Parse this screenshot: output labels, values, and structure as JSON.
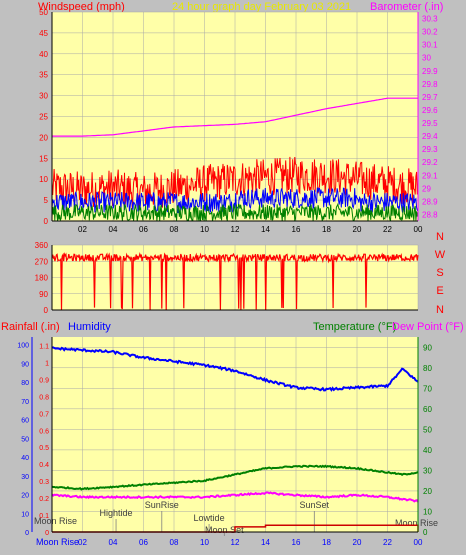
{
  "title": "24 hour graph day   February 03 2021",
  "colors": {
    "background": "#c0c0c0",
    "plot_bg": "#ffffa8",
    "grid": "#a8a8a8",
    "red": "#ff0000",
    "blue": "#0000ff",
    "green": "#008000",
    "magenta": "#ff00ff",
    "yellow": "#e8e800",
    "darkred": "#cc0000",
    "axis": "#000000",
    "gray_text": "#404040"
  },
  "x_ticks": [
    "02",
    "04",
    "06",
    "08",
    "10",
    "12",
    "14",
    "16",
    "18",
    "20",
    "22",
    "00"
  ],
  "chart_data": [
    {
      "type": "line",
      "name": "wind-barometer",
      "left_label": "Windspeed (mph)",
      "right_label": "Barometer (.in)",
      "left_ticks": [
        "50",
        "45",
        "40",
        "35",
        "30",
        "25",
        "20",
        "15",
        "10",
        "5",
        "0"
      ],
      "right_ticks": [
        "30.3",
        "30.2",
        "30.1",
        "30",
        "29.9",
        "29.8",
        "29.7",
        "29.6",
        "29.5",
        "29.4",
        "29.3",
        "29.2",
        "29.1",
        "29",
        "28.9",
        "28.8"
      ],
      "ylim_left": [
        0,
        50
      ],
      "ylim_right": [
        28.75,
        30.35
      ],
      "x": [
        0,
        2,
        4,
        6,
        8,
        10,
        12,
        14,
        16,
        18,
        20,
        22,
        24
      ],
      "series": [
        {
          "name": "Windspeed (mph)",
          "axis": "left",
          "color": "red",
          "style": "noisy",
          "values": [
            8,
            7.5,
            8,
            7,
            8,
            9,
            10,
            10.5,
            11,
            11,
            10,
            9,
            8
          ]
        },
        {
          "name": "Barometer (.in)",
          "axis": "right",
          "values": [
            29.4,
            29.4,
            29.41,
            29.44,
            29.47,
            29.48,
            29.49,
            29.51,
            29.56,
            29.61,
            29.65,
            29.69,
            29.69
          ]
        }
      ],
      "extra_noisy_series": [
        {
          "color": "blue",
          "base": 4.5,
          "amp": 2.5
        },
        {
          "color": "green",
          "base": 2.0,
          "amp": 2.0
        }
      ]
    },
    {
      "type": "line",
      "name": "wind-direction",
      "left_ticks": [
        "360",
        "270",
        "180",
        "90",
        "0"
      ],
      "right_letters": [
        "N",
        "W",
        "S",
        "E",
        "N"
      ],
      "ylim": [
        0,
        360
      ],
      "series": [
        {
          "name": "Wind direction",
          "typical_value": 290,
          "values_note": ""
        }
      ]
    },
    {
      "type": "line",
      "name": "rain-humidity-temperature",
      "labels": {
        "rainfall": "Rainfall (.in)",
        "humidity": "Humidity",
        "temperature": "Temperature (°F)",
        "dewpoint": "Dew Point (°F)"
      },
      "rain_ticks": [
        "1.1",
        "1",
        "0.9",
        "0.8",
        "0.7",
        "0.6",
        "0.5",
        "0.4",
        "0.3",
        "0.2",
        "0.1",
        "0"
      ],
      "humidity_ticks": [
        "100",
        "90",
        "80",
        "70",
        "60",
        "50",
        "40",
        "30",
        "20",
        "10",
        "0"
      ],
      "temp_ticks": [
        "90",
        "80",
        "70",
        "60",
        "50",
        "40",
        "30",
        "20",
        "10",
        "0"
      ],
      "ylim_temp": [
        0,
        95
      ],
      "x": [
        0,
        2,
        4,
        6,
        8,
        10,
        12,
        14,
        16,
        18,
        20,
        22,
        23,
        24
      ],
      "series": [
        {
          "name": "Humidity",
          "color": "blue",
          "values": [
            98,
            97,
            96,
            93,
            91,
            89,
            86,
            81,
            77,
            76,
            77,
            78,
            87,
            80
          ]
        },
        {
          "name": "Temperature (°F)",
          "color": "green",
          "values": [
            22,
            21,
            22,
            23,
            24,
            25,
            28,
            31,
            32,
            32,
            31,
            29,
            28,
            29
          ]
        },
        {
          "name": "Dew Point (°F)",
          "color": "magenta",
          "values": [
            18,
            17,
            17,
            17,
            17,
            17,
            18,
            19,
            18,
            17,
            18,
            17,
            16,
            15
          ]
        },
        {
          "name": "Rainfall (.in)",
          "color": "darkred",
          "values": [
            0,
            0,
            0,
            0,
            0,
            0,
            0.03,
            0.04,
            0.04,
            0.04,
            0.04,
            0.04,
            0.04,
            0
          ]
        }
      ],
      "events": [
        {
          "label": "Moon Rise",
          "hour": 0
        },
        {
          "label": "Hightide",
          "hour": 4.2
        },
        {
          "label": "SunRise",
          "hour": 7.2
        },
        {
          "label": "Lowtide",
          "hour": 10.3
        },
        {
          "label": "Moon Set",
          "hour": 11.3
        },
        {
          "label": "SunSet",
          "hour": 17.2
        },
        {
          "label": "Moon Rise",
          "hour": 23.5
        }
      ],
      "bottom_left_label": "Moon Rise"
    }
  ]
}
